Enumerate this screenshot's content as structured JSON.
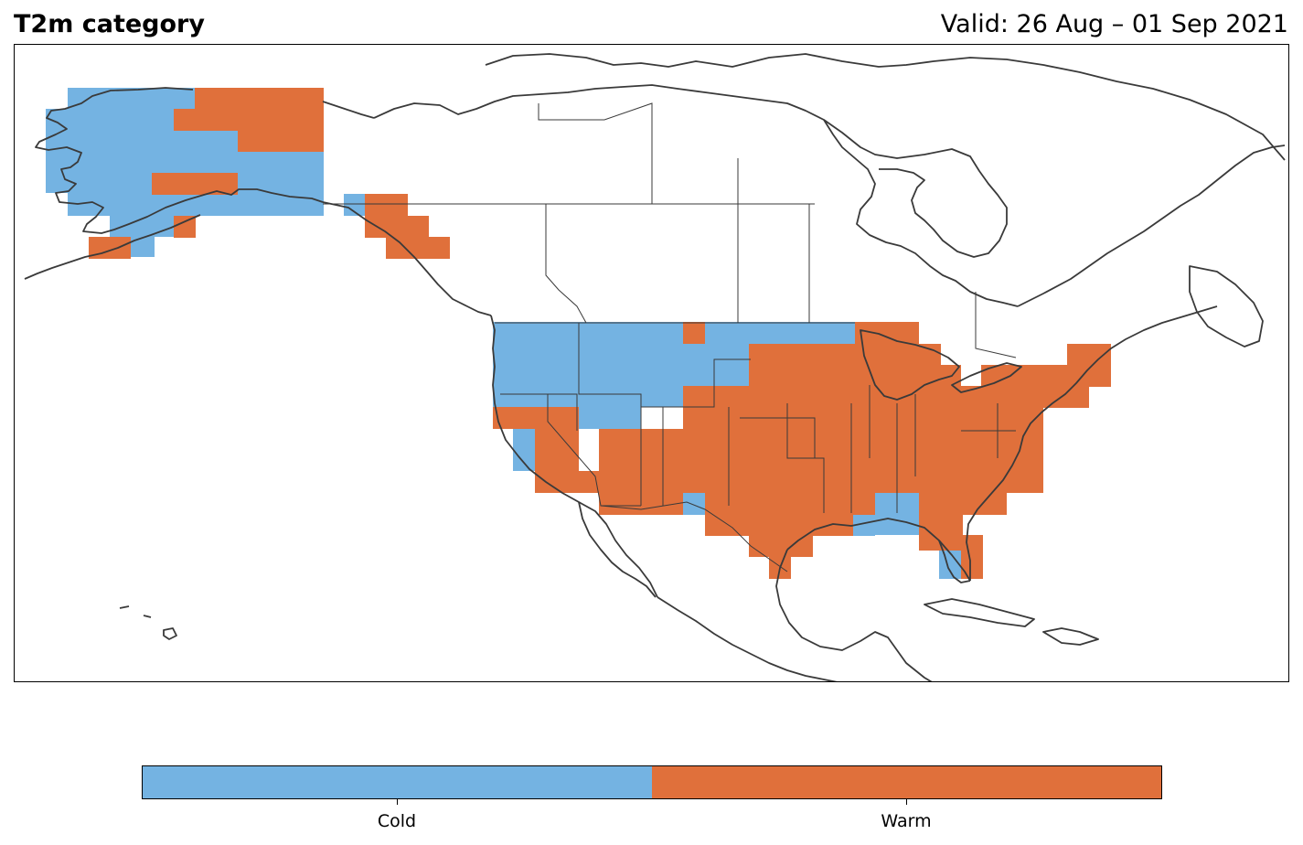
{
  "header": {
    "title": "T2m category",
    "valid": "Valid: 26 Aug – 01 Sep 2021"
  },
  "colors": {
    "Cold": "#74b3e2",
    "Warm": "#e0703b",
    "coastline": "#3a3a3a",
    "frame": "#000000"
  },
  "legend": {
    "categories": [
      "Cold",
      "Warm"
    ]
  }
}
